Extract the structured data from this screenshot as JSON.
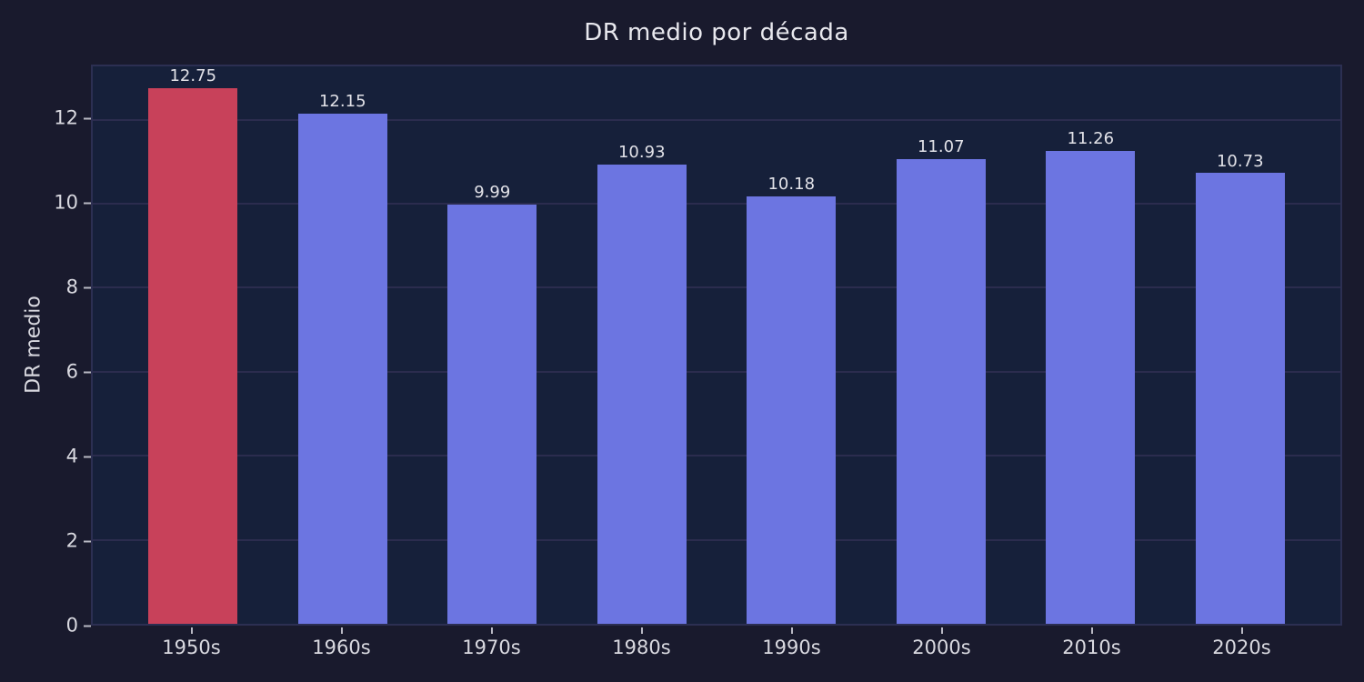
{
  "chart_data": {
    "type": "bar",
    "title": "DR medio por década",
    "xlabel": "",
    "ylabel": "DR medio",
    "categories": [
      "1950s",
      "1960s",
      "1970s",
      "1980s",
      "1990s",
      "2000s",
      "2010s",
      "2020s"
    ],
    "values": [
      12.75,
      12.15,
      9.99,
      10.93,
      10.18,
      11.07,
      11.26,
      10.73
    ],
    "bar_labels": [
      "12.75",
      "12.15",
      "9.99",
      "10.93",
      "10.18",
      "11.07",
      "11.26",
      "10.73"
    ],
    "bar_colors": [
      "#c8415a",
      "#6c75e1",
      "#6c75e1",
      "#6c75e1",
      "#6c75e1",
      "#6c75e1",
      "#6c75e1",
      "#6c75e1"
    ],
    "highlighted_category": "1950s",
    "ylim": [
      0,
      13.27
    ],
    "yticks": [
      "0",
      "2",
      "4",
      "6",
      "8",
      "10",
      "12"
    ],
    "grid": "horizontal",
    "legend_position": "none"
  },
  "colors": {
    "background": "#191a2d",
    "plot_background": "#16203a",
    "gridline": "#2b2c4e",
    "spine": "#2c2f52",
    "title_text": "#e8e8ee",
    "tick_text": "#d9d9e0",
    "bar_label_text": "#e2e2e8",
    "highlight_bar": "#c8415a",
    "default_bar": "#6c75e1"
  }
}
